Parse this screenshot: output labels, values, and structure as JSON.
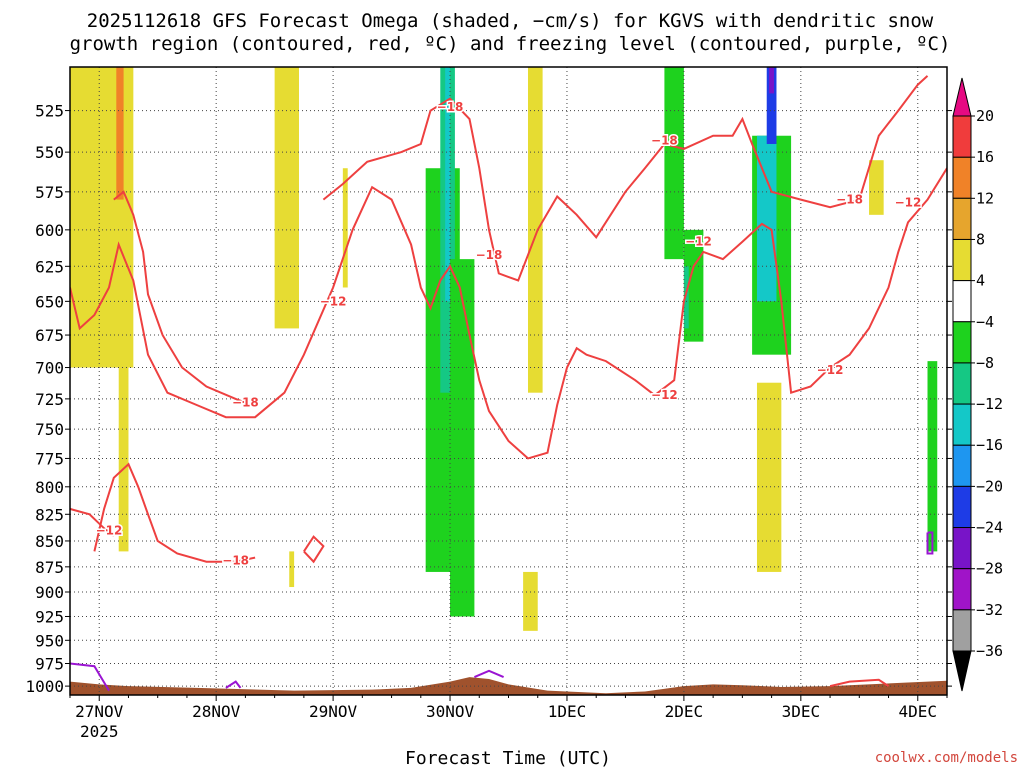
{
  "title_line1": "2025112618 GFS Forecast Omega (shaded, −cm/s) for KGVS with dendritic snow",
  "title_line2": "growth region (contoured, red, ºC) and freezing level (contoured, purple, ºC)",
  "credit": "coolwx.com/models",
  "chart_data": {
    "type": "heatmap",
    "title": "2025112618 GFS Forecast Omega (shaded, −cm/s) for KGVS with dendritic snow growth region (contoured, red, ºC) and freezing level (contoured, purple, ºC)",
    "xlabel": "Forecast Time (UTC)",
    "ylabel": "",
    "x_ticks": [
      {
        "label": "27NOV",
        "x": 0
      },
      {
        "label": "28NOV",
        "x": 24
      },
      {
        "label": "29NOV",
        "x": 48
      },
      {
        "label": "30NOV",
        "x": 72
      },
      {
        "label": "1DEC",
        "x": 96
      },
      {
        "label": "2DEC",
        "x": 120
      },
      {
        "label": "3DEC",
        "x": 144
      },
      {
        "label": "4DEC",
        "x": 168
      }
    ],
    "x_year_label": "2025",
    "xlim": [
      -6,
      174
    ],
    "y_ticks": [
      525,
      550,
      575,
      600,
      625,
      650,
      675,
      700,
      725,
      750,
      775,
      800,
      825,
      850,
      875,
      900,
      925,
      950,
      975,
      1000
    ],
    "ylim": [
      500,
      1010
    ],
    "y_scale": "log-pressure",
    "grid": true,
    "colorbar": {
      "levels": [
        20,
        16,
        12,
        8,
        4,
        -4,
        -8,
        -12,
        -16,
        -20,
        -24,
        -28,
        -32,
        -36
      ],
      "colors": [
        "#e8336e",
        "#f03c3c",
        "#f08228",
        "#e6a52d",
        "#e6dc32",
        "#ffffff",
        "#1ed21e",
        "#15c884",
        "#14c8c8",
        "#1e96f0",
        "#1e3ce6",
        "#7814c8",
        "#a014c8",
        "#a0a0a0"
      ],
      "top_arrow_color": "#e60a82",
      "bottom_arrow_color": "#000000"
    },
    "shaded_regions": [
      {
        "category": "4 to 8",
        "color": "#e6dc32",
        "x0": -6,
        "x1": 7,
        "p_top": 500,
        "p_bottom": 700
      },
      {
        "category": "8 to 12",
        "color": "#f08228",
        "x0": 3.5,
        "x1": 5,
        "p_top": 500,
        "p_bottom": 580
      },
      {
        "category": "4 to 8",
        "color": "#e6dc32",
        "x0": 4,
        "x1": 6,
        "p_top": 700,
        "p_bottom": 860
      },
      {
        "category": "4 to 8",
        "color": "#e6dc32",
        "x0": 36,
        "x1": 41,
        "p_top": 500,
        "p_bottom": 670
      },
      {
        "category": "4 to 8",
        "color": "#e6dc32",
        "x0": 50,
        "x1": 51,
        "p_top": 560,
        "p_bottom": 640
      },
      {
        "category": "4 to 8",
        "color": "#e6dc32",
        "x0": 39,
        "x1": 40,
        "p_top": 860,
        "p_bottom": 895
      },
      {
        "category": "-8 to -4",
        "color": "#1ed21e",
        "x0": 67,
        "x1": 74,
        "p_top": 560,
        "p_bottom": 880
      },
      {
        "category": "-12 to -8",
        "color": "#15c884",
        "x0": 70,
        "x1": 73,
        "p_top": 500,
        "p_bottom": 720
      },
      {
        "category": "-16 to -12",
        "color": "#14c8c8",
        "x0": 71,
        "x1": 72,
        "p_top": 500,
        "p_bottom": 650
      },
      {
        "category": "-8 to -4",
        "color": "#1ed21e",
        "x0": 72,
        "x1": 77,
        "p_top": 620,
        "p_bottom": 925
      },
      {
        "category": "4 to 8",
        "color": "#e6dc32",
        "x0": 88,
        "x1": 91,
        "p_top": 500,
        "p_bottom": 720
      },
      {
        "category": "4 to 8",
        "color": "#e6dc32",
        "x0": 87,
        "x1": 90,
        "p_top": 880,
        "p_bottom": 940
      },
      {
        "category": "-8 to -4",
        "color": "#1ed21e",
        "x0": 116,
        "x1": 120,
        "p_top": 500,
        "p_bottom": 620
      },
      {
        "category": "-8 to -4",
        "color": "#1ed21e",
        "x0": 120,
        "x1": 124,
        "p_top": 600,
        "p_bottom": 680
      },
      {
        "category": "-12 to -8",
        "color": "#15c884",
        "x0": 120,
        "x1": 121,
        "p_top": 625,
        "p_bottom": 670
      },
      {
        "category": "-8 to -4",
        "color": "#1ed21e",
        "x0": 134,
        "x1": 142,
        "p_top": 540,
        "p_bottom": 690
      },
      {
        "category": "-16 to -12",
        "color": "#14c8c8",
        "x0": 135,
        "x1": 139,
        "p_top": 540,
        "p_bottom": 650
      },
      {
        "category": "-24 to -20",
        "color": "#1e3ce6",
        "x0": 137,
        "x1": 139,
        "p_top": 500,
        "p_bottom": 545
      },
      {
        "category": "-28 to -24",
        "color": "#7814c8",
        "x0": 137.5,
        "x1": 138.5,
        "p_top": 500,
        "p_bottom": 515
      },
      {
        "category": "4 to 8",
        "color": "#e6dc32",
        "x0": 135,
        "x1": 140,
        "p_top": 712,
        "p_bottom": 880
      },
      {
        "category": "4 to 8",
        "color": "#e6dc32",
        "x0": 158,
        "x1": 161,
        "p_top": 555,
        "p_bottom": 590
      },
      {
        "category": "-8 to -4",
        "color": "#1ed21e",
        "x0": 170,
        "x1": 172,
        "p_top": 695,
        "p_bottom": 860
      }
    ],
    "contours": [
      {
        "name": "dendritic -12 ºC",
        "color": "#ee4040",
        "label": "−12",
        "points": [
          [
            -6,
            640
          ],
          [
            -4,
            670
          ],
          [
            -1,
            660
          ],
          [
            2,
            640
          ],
          [
            4,
            610
          ],
          [
            7,
            635
          ],
          [
            10,
            690
          ],
          [
            14,
            720
          ],
          [
            20,
            730
          ],
          [
            26,
            740
          ],
          [
            32,
            740
          ],
          [
            38,
            720
          ],
          [
            42,
            690
          ],
          [
            48,
            640
          ],
          [
            52,
            600
          ],
          [
            56,
            572
          ],
          [
            60,
            580
          ],
          [
            64,
            610
          ],
          [
            66,
            640
          ],
          [
            68,
            655
          ],
          [
            70,
            635
          ],
          [
            72,
            625
          ],
          [
            74,
            640
          ],
          [
            76,
            675
          ],
          [
            78,
            710
          ],
          [
            80,
            735
          ],
          [
            84,
            760
          ],
          [
            88,
            775
          ],
          [
            92,
            770
          ],
          [
            94,
            730
          ],
          [
            96,
            700
          ],
          [
            98,
            685
          ],
          [
            100,
            690
          ],
          [
            104,
            695
          ],
          [
            110,
            710
          ],
          [
            114,
            722
          ],
          [
            118,
            710
          ],
          [
            120,
            650
          ],
          [
            122,
            625
          ],
          [
            124,
            615
          ],
          [
            128,
            620
          ],
          [
            132,
            608
          ],
          [
            136,
            596
          ],
          [
            138,
            600
          ],
          [
            140,
            650
          ],
          [
            142,
            720
          ],
          [
            146,
            715
          ],
          [
            150,
            700
          ],
          [
            154,
            690
          ],
          [
            158,
            670
          ],
          [
            162,
            640
          ],
          [
            164,
            615
          ],
          [
            166,
            595
          ],
          [
            170,
            580
          ],
          [
            174,
            560
          ]
        ],
        "label_at": [
          [
            48,
            650
          ],
          [
            123,
            608
          ],
          [
            116,
            722
          ],
          [
            150,
            702
          ],
          [
            166,
            582
          ]
        ]
      },
      {
        "name": "dendritic -18 ºC",
        "color": "#ee4040",
        "label": "−18",
        "points": [
          [
            -1,
            860
          ],
          [
            1,
            820
          ],
          [
            3,
            792
          ],
          [
            6,
            780
          ],
          [
            8,
            800
          ],
          [
            10,
            825
          ],
          [
            12,
            850
          ],
          [
            16,
            862
          ],
          [
            22,
            870
          ],
          [
            28,
            870
          ],
          [
            32,
            866
          ]
        ],
        "label_at": [
          [
            28,
            869
          ]
        ]
      },
      {
        "name": "dendritic -12 ºC (lower)",
        "color": "#ee4040",
        "label": "−12",
        "points": [
          [
            -6,
            820
          ],
          [
            -2,
            825
          ],
          [
            1,
            838
          ],
          [
            3,
            845
          ]
        ],
        "label_at": [
          [
            2,
            840
          ]
        ]
      },
      {
        "name": "dendritic -18 ºC (lower-left)",
        "color": "#ee4040",
        "label": "−18",
        "points": [
          [
            3,
            580
          ],
          [
            5,
            575
          ],
          [
            7,
            590
          ],
          [
            9,
            615
          ],
          [
            10,
            645
          ],
          [
            13,
            675
          ],
          [
            17,
            700
          ],
          [
            22,
            715
          ],
          [
            28,
            725
          ],
          [
            30,
            728
          ]
        ],
        "label_at": [
          [
            30,
            728
          ]
        ]
      },
      {
        "name": "dendritic -18 ºC (upper)",
        "color": "#ee4040",
        "label": "−18",
        "points": [
          [
            46,
            580
          ],
          [
            50,
            570
          ],
          [
            55,
            556
          ],
          [
            62,
            550
          ],
          [
            66,
            545
          ],
          [
            68,
            525
          ],
          [
            72,
            518
          ],
          [
            76,
            530
          ],
          [
            78,
            560
          ],
          [
            80,
            600
          ],
          [
            82,
            630
          ],
          [
            86,
            635
          ],
          [
            90,
            600
          ],
          [
            94,
            578
          ],
          [
            98,
            590
          ],
          [
            102,
            605
          ],
          [
            108,
            575
          ],
          [
            112,
            560
          ],
          [
            116,
            545
          ],
          [
            120,
            548
          ],
          [
            126,
            540
          ],
          [
            130,
            540
          ],
          [
            132,
            530
          ],
          [
            134,
            545
          ],
          [
            138,
            575
          ],
          [
            144,
            580
          ],
          [
            150,
            585
          ],
          [
            156,
            580
          ],
          [
            160,
            540
          ],
          [
            164,
            525
          ],
          [
            168,
            510
          ],
          [
            170,
            505
          ]
        ],
        "label_at": [
          [
            72,
            523
          ],
          [
            80,
            617
          ],
          [
            116,
            543
          ],
          [
            154,
            580
          ]
        ]
      },
      {
        "name": "dendritic -16 ºC closed",
        "color": "#ee4040",
        "label": "",
        "points": [
          [
            42,
            860
          ],
          [
            44,
            846
          ],
          [
            46,
            855
          ],
          [
            44,
            870
          ],
          [
            42,
            860
          ]
        ]
      }
    ],
    "freezing_level": [
      {
        "name": "freezing level 0 ºC",
        "color": "#9a14d2",
        "points": [
          [
            -6,
            975
          ],
          [
            -1,
            978
          ],
          [
            2,
            1005
          ]
        ]
      },
      {
        "name": "freezing level 0 ºC",
        "color": "#9a14d2",
        "points": [
          [
            26,
            1002
          ],
          [
            28,
            995
          ],
          [
            29,
            1002
          ]
        ]
      },
      {
        "name": "freezing level 0 ºC",
        "color": "#9a14d2",
        "points": [
          [
            77,
            990
          ],
          [
            80,
            983
          ],
          [
            83,
            990
          ]
        ]
      },
      {
        "name": "freezing level 0 ºC",
        "color": "#9a14d2",
        "points": [
          [
            170,
            842
          ],
          [
            171,
            842
          ],
          [
            171,
            862
          ],
          [
            170,
            862
          ],
          [
            170,
            842
          ]
        ]
      }
    ],
    "low_contour_segment": [
      [
        150,
        1000
      ],
      [
        154,
        995
      ],
      [
        160,
        993
      ],
      [
        162,
        1000
      ]
    ],
    "terrain": {
      "color": "#a0522d",
      "surface": [
        [
          -6,
          995
        ],
        [
          0,
          998
        ],
        [
          6,
          1000
        ],
        [
          20,
          1002
        ],
        [
          40,
          1005
        ],
        [
          56,
          1004
        ],
        [
          64,
          1002
        ],
        [
          72,
          995
        ],
        [
          76,
          990
        ],
        [
          80,
          992
        ],
        [
          84,
          998
        ],
        [
          92,
          1005
        ],
        [
          104,
          1008
        ],
        [
          112,
          1006
        ],
        [
          120,
          1000
        ],
        [
          126,
          998
        ],
        [
          132,
          999
        ],
        [
          140,
          1001
        ],
        [
          150,
          1000
        ],
        [
          166,
          996
        ],
        [
          174,
          994
        ]
      ]
    }
  }
}
